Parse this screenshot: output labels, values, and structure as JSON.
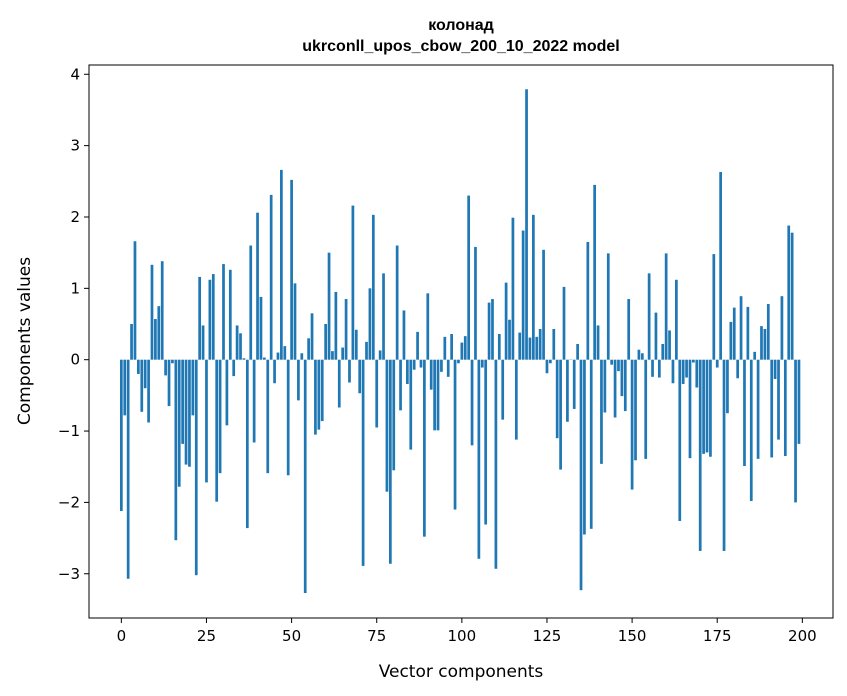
{
  "chart_data": {
    "type": "bar",
    "title": "колонад",
    "subtitle": "ukrconll_upos_cbow_200_10_2022 model",
    "xlabel": "Vector components",
    "ylabel": "Components values",
    "xlim": [
      -9.5,
      209
    ],
    "ylim": [
      -3.62,
      4.13
    ],
    "xticks": [
      0,
      25,
      50,
      75,
      100,
      125,
      150,
      175,
      200
    ],
    "yticks": [
      -3,
      -2,
      -1,
      0,
      1,
      2,
      3,
      4
    ],
    "xtick_labels": [
      "0",
      "25",
      "50",
      "75",
      "100",
      "125",
      "150",
      "175",
      "200"
    ],
    "ytick_labels": [
      "−3",
      "−2",
      "−1",
      "0",
      "1",
      "2",
      "3",
      "4"
    ],
    "bar_color": "#1f77b4",
    "grid": false,
    "series": [
      {
        "values": [
          -2.12,
          -0.78,
          -3.07,
          0.5,
          1.66,
          -0.2,
          -0.73,
          -0.4,
          -0.88,
          1.33,
          0.57,
          0.75,
          1.38,
          -0.22,
          -0.65,
          -0.05,
          -2.53,
          -1.78,
          -1.18,
          -1.47,
          -1.5,
          -0.78,
          -3.02,
          1.16,
          0.48,
          -1.72,
          1.12,
          1.2,
          -1.99,
          -1.59,
          1.34,
          -0.92,
          1.26,
          -0.23,
          0.48,
          0.37,
          0.02,
          -2.36,
          1.6,
          -1.16,
          2.06,
          0.88,
          0.03,
          -1.59,
          2.31,
          -0.33,
          0.1,
          2.66,
          0.19,
          -1.62,
          2.52,
          1.07,
          -0.57,
          0.09,
          -3.27,
          0.3,
          0.65,
          -1.05,
          -0.98,
          -0.86,
          0.5,
          1.5,
          0.12,
          0.95,
          -0.67,
          0.17,
          0.85,
          -0.32,
          2.16,
          0.42,
          -0.47,
          -2.89,
          0.25,
          1.0,
          2.03,
          -0.95,
          0.13,
          1.21,
          -1.85,
          -2.86,
          -1.55,
          1.6,
          -0.71,
          0.69,
          -0.34,
          -1.26,
          -0.14,
          0.39,
          -0.11,
          -2.48,
          0.93,
          -0.42,
          -0.99,
          -0.99,
          -0.17,
          0.32,
          -0.24,
          0.36,
          -2.1,
          -0.05,
          0.24,
          0.33,
          2.3,
          -1.2,
          1.58,
          -2.79,
          -0.11,
          -2.31,
          0.8,
          0.85,
          -2.93,
          0.36,
          -0.84,
          1.08,
          0.56,
          1.99,
          -1.12,
          0.38,
          1.81,
          3.79,
          0.31,
          2.03,
          0.32,
          0.43,
          1.54,
          -0.19,
          -0.05,
          0.43,
          -1.1,
          -1.54,
          1.02,
          -0.87,
          0.0,
          -0.69,
          0.22,
          -3.23,
          -2.45,
          1.65,
          -2.37,
          2.45,
          0.48,
          -1.46,
          -0.74,
          1.49,
          -0.07,
          -0.81,
          -0.16,
          -0.51,
          -0.72,
          0.85,
          -1.82,
          -1.41,
          0.14,
          0.09,
          -1.39,
          1.21,
          -0.24,
          0.66,
          -0.25,
          0.22,
          1.49,
          0.41,
          -0.33,
          1.12,
          -2.26,
          -0.34,
          -0.25,
          -1.38,
          -0.04,
          -0.39,
          -2.68,
          -1.32,
          -1.3,
          -1.36,
          1.48,
          -0.11,
          2.63,
          -2.68,
          -0.75,
          0.53,
          0.73,
          -0.26,
          0.89,
          -1.49,
          0.74,
          -1.98,
          0.11,
          -1.39,
          0.47,
          0.43,
          0.78,
          -1.37,
          -0.27,
          -1.12,
          0.89,
          -1.35,
          1.88,
          1.78,
          -2.0,
          -1.18
        ]
      }
    ]
  }
}
